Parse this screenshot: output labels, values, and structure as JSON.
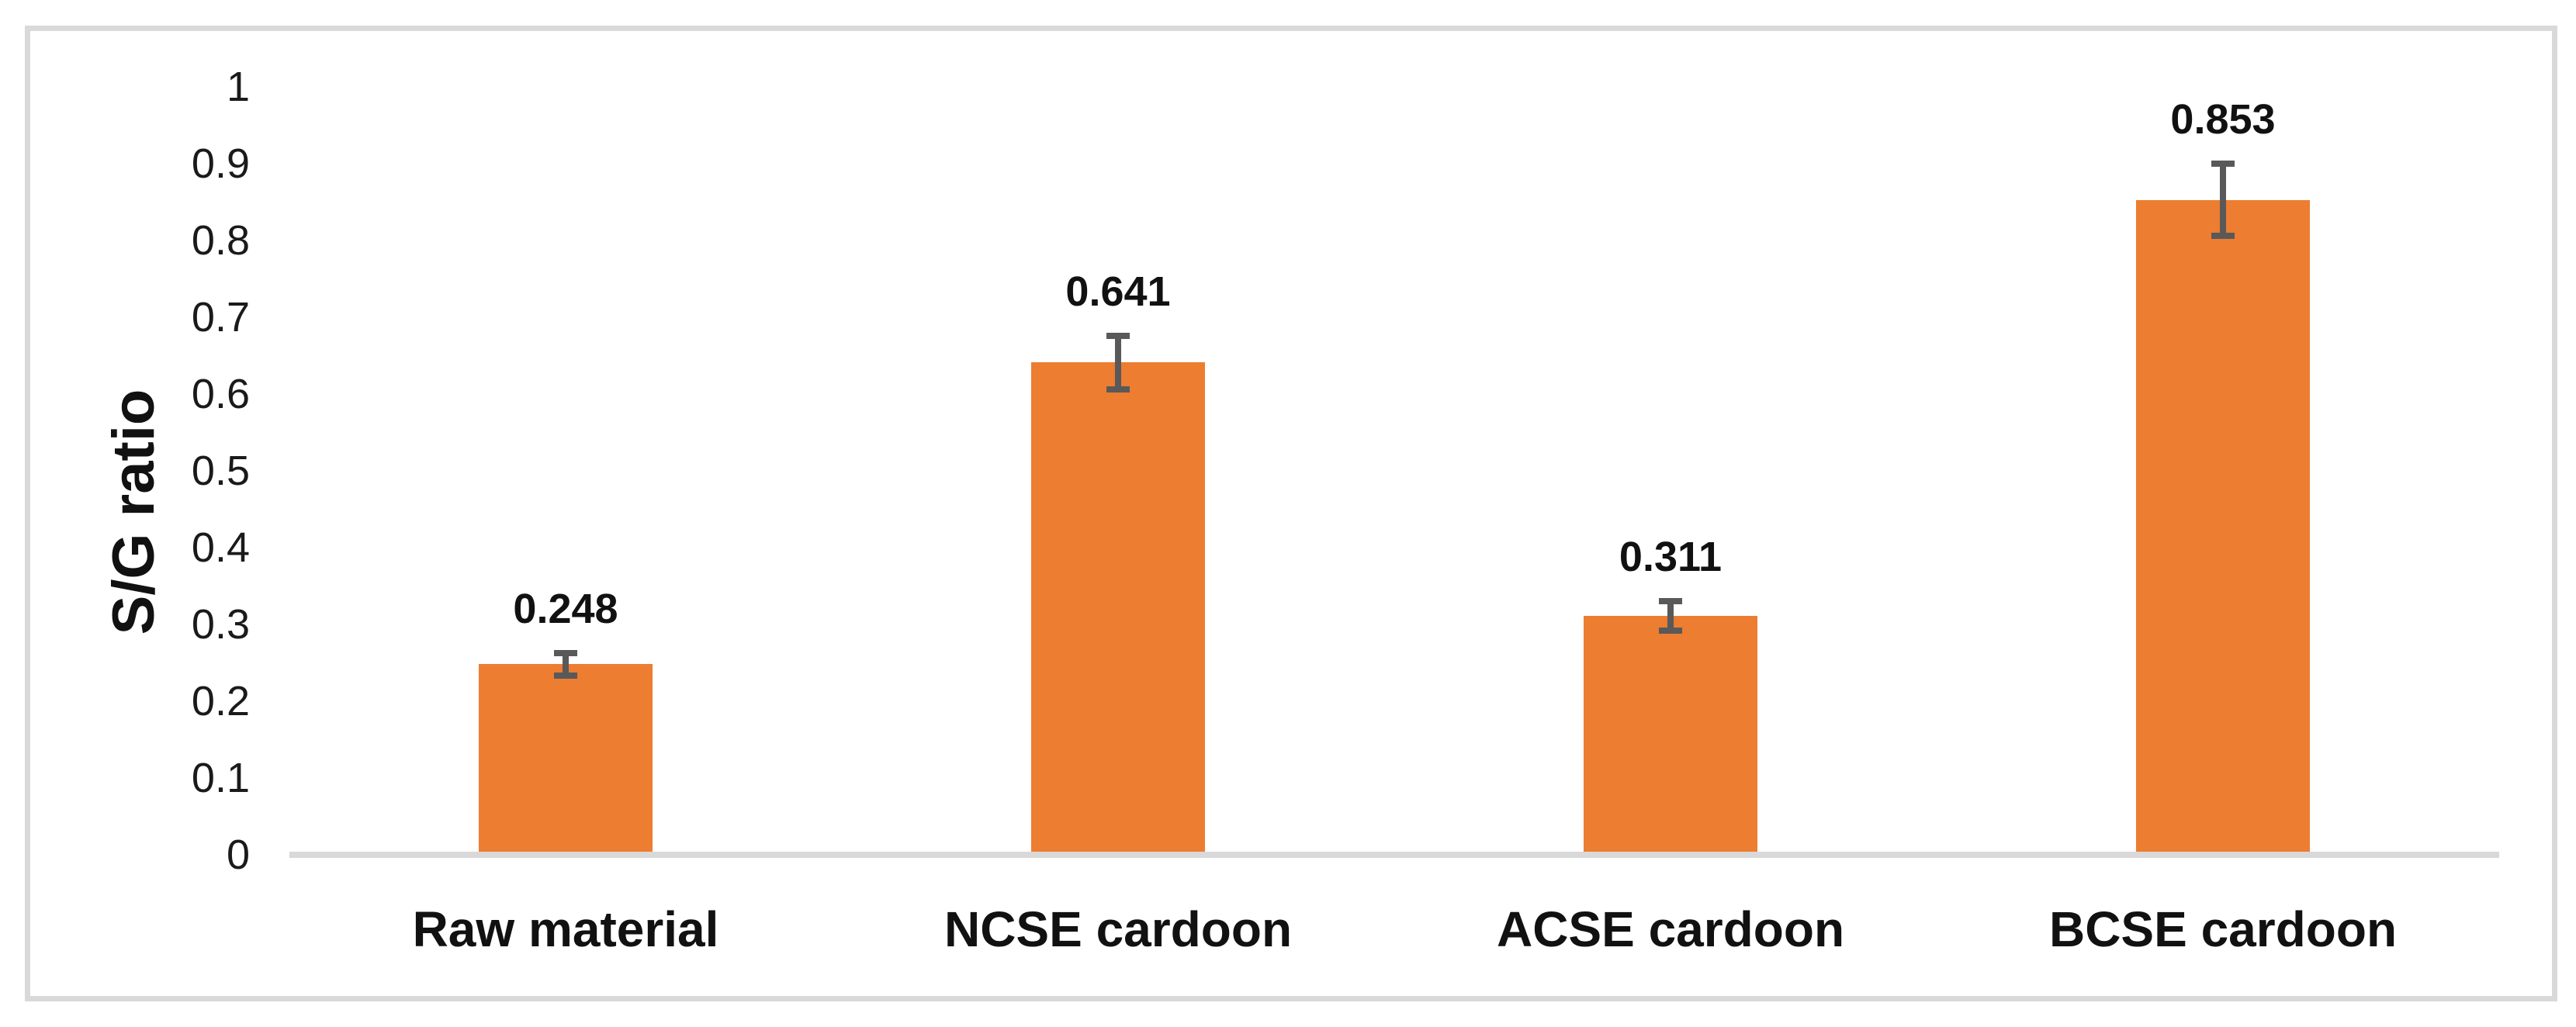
{
  "chart_data": {
    "type": "bar",
    "title": "",
    "xlabel": "",
    "ylabel": "S/G ratio",
    "categories": [
      "Raw material",
      "NCSE cardoon",
      "ACSE cardoon",
      "BCSE cardoon"
    ],
    "values": [
      0.248,
      0.641,
      0.311,
      0.853
    ],
    "data_labels": [
      "0.248",
      "0.641",
      "0.311",
      "0.853"
    ],
    "error_bars_plus_minus": [
      0.015,
      0.035,
      0.019,
      0.047
    ],
    "ylim": [
      0,
      1
    ],
    "yticks": [
      {
        "value": 0,
        "label": "0"
      },
      {
        "value": 0.1,
        "label": "0.1"
      },
      {
        "value": 0.2,
        "label": "0.2"
      },
      {
        "value": 0.3,
        "label": "0.3"
      },
      {
        "value": 0.4,
        "label": "0.4"
      },
      {
        "value": 0.5,
        "label": "0.5"
      },
      {
        "value": 0.6,
        "label": "0.6"
      },
      {
        "value": 0.7,
        "label": "0.7"
      },
      {
        "value": 0.8,
        "label": "0.8"
      },
      {
        "value": 0.9,
        "label": "0.9"
      },
      {
        "value": 1,
        "label": "1"
      }
    ],
    "grid": false,
    "legend_position": "none",
    "colors": {
      "bar_fill": "#ED7D31",
      "error_bar": "#595959",
      "axis_line": "#D9D9D9",
      "frame_border": "#D9D9D9",
      "background": "#FFFFFF",
      "tick_label": "#1A1A1A",
      "data_label": "#111111",
      "category_label": "#111111",
      "axis_title": "#111111"
    }
  }
}
